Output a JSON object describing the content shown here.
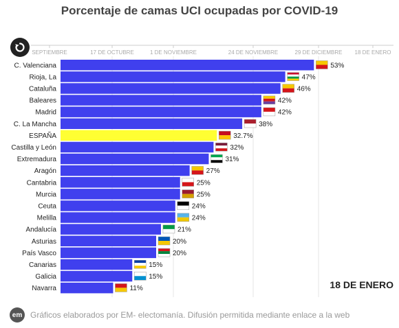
{
  "header": {
    "title": "Porcentaje de camas UCI ocupadas por COVID-19"
  },
  "controls": {
    "replay_icon": "replay-icon"
  },
  "date_label": "18 DE ENERO",
  "footer": {
    "logo_text": "em",
    "credit": "Gráficos elaborados por EM- electomanía. Difusión permitida mediante enlace a la web"
  },
  "colors": {
    "bar": "#4040ee",
    "highlight": "#ffff33",
    "axis_text": "#aaaaaa",
    "timeline_line": "#cccccc"
  },
  "chart_data": {
    "type": "bar",
    "orientation": "horizontal",
    "title": "Porcentaje de camas UCI ocupadas por COVID-19",
    "timeline_ticks": [
      "SEPTIEMBRE",
      "17 DE OCTUBRE",
      "1 DE NOVIEMBRE",
      "24 DE NOVIEMBRE",
      "29 DE DICIEMBRE",
      "18 DE ENERO"
    ],
    "xlim": [
      0,
      60
    ],
    "highlight_category": "ESPAÑA",
    "categories": [
      "C. Valenciana",
      "Rioja, La",
      "Cataluña",
      "Baleares",
      "Madrid",
      "C. La Mancha",
      "ESPAÑA",
      "Castilla y León",
      "Extremadura",
      "Aragón",
      "Cantabria",
      "Murcia",
      "Ceuta",
      "Melilla",
      "Andalucía",
      "Asturias",
      "País Vasco",
      "Canarias",
      "Galicia",
      "Navarra"
    ],
    "values": [
      53,
      47,
      46,
      42,
      42,
      38,
      32.7,
      32,
      31,
      27,
      25,
      25,
      24,
      24,
      21,
      20,
      20,
      15,
      15,
      11
    ],
    "value_labels": [
      "53%",
      "47%",
      "46%",
      "42%",
      "42%",
      "38%",
      "32.7%",
      "32%",
      "31%",
      "27%",
      "25%",
      "25%",
      "24%",
      "24%",
      "21%",
      "20%",
      "20%",
      "15%",
      "15%",
      "11%"
    ],
    "flag_icons": [
      [
        "#f6c800",
        "#d5151a"
      ],
      [
        "#c8102e",
        "#ffffff",
        "#009a44",
        "#ffd100"
      ],
      [
        "#f6c800",
        "#d5151a"
      ],
      [
        "#f6c800",
        "#d5151a",
        "#6b3fa0"
      ],
      [
        "#d5151a",
        "#ffffff"
      ],
      [
        "#aa1f2e",
        "#ffffff"
      ],
      [
        "#c60b1e",
        "#ffc400"
      ],
      [
        "#7b1c3a",
        "#ffffff",
        "#d5151a"
      ],
      [
        "#00a650",
        "#ffffff",
        "#000000"
      ],
      [
        "#f6c800",
        "#d5151a"
      ],
      [
        "#ffffff",
        "#d5151a"
      ],
      [
        "#9b1b30",
        "#d5a000"
      ],
      [
        "#000000",
        "#ffffff"
      ],
      [
        "#57b4e8",
        "#f0c800"
      ],
      [
        "#009a44",
        "#ffffff"
      ],
      [
        "#0057b8",
        "#f6c800"
      ],
      [
        "#d5151a",
        "#00843d",
        "#ffffff"
      ],
      [
        "#003da5",
        "#ffffff",
        "#f6c800"
      ],
      [
        "#ffffff",
        "#0090d0"
      ],
      [
        "#d5151a",
        "#f6c800"
      ]
    ]
  }
}
